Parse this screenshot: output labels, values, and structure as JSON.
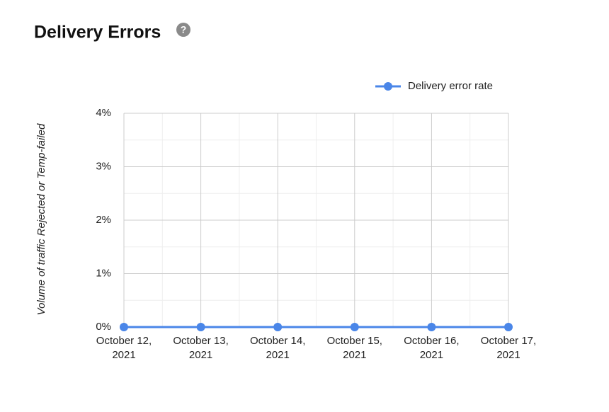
{
  "chart_data": {
    "type": "line",
    "title": "Delivery Errors",
    "help_icon": "?",
    "y_label": "Volume of traffic Rejected or Temp-failed",
    "categories": [
      "October 12, 2021",
      "October 13, 2021",
      "October 14, 2021",
      "October 15, 2021",
      "October 16, 2021",
      "October 17, 2021"
    ],
    "series": [
      {
        "name": "Delivery error rate",
        "color": "#4a86e8",
        "values": [
          0,
          0,
          0,
          0,
          0,
          0
        ]
      }
    ],
    "ylim": [
      0,
      4
    ],
    "yticks": [
      {
        "value": 0,
        "label": "0%"
      },
      {
        "value": 1,
        "label": "1%"
      },
      {
        "value": 2,
        "label": "2%"
      },
      {
        "value": 3,
        "label": "3%"
      },
      {
        "value": 4,
        "label": "4%"
      }
    ],
    "grid": true,
    "legend": "top-right"
  }
}
